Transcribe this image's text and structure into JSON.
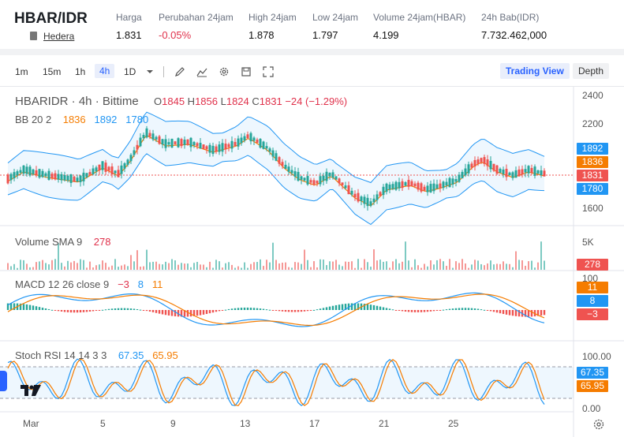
{
  "header": {
    "pair": "HBAR/IDR",
    "coin_name": "Hedera",
    "stats": [
      {
        "label": "Harga",
        "value": "1.831"
      },
      {
        "label": "Perubahan 24jam",
        "value": "-0.05%",
        "negative": true
      },
      {
        "label": "High 24jam",
        "value": "1.878"
      },
      {
        "label": "Low 24jam",
        "value": "1.797"
      },
      {
        "label": "Volume 24jam(HBAR)",
        "value": "4.199"
      },
      {
        "label": "24h Bab(IDR)",
        "value": "7.732.462,000"
      }
    ]
  },
  "toolbar": {
    "timeframes": [
      "1m",
      "15m",
      "1h",
      "4h",
      "1D"
    ],
    "active_timeframe": "4h",
    "views": [
      "Trading View",
      "Depth"
    ],
    "active_view": "Trading View",
    "icons": [
      "chevron-down-icon",
      "pencil-icon",
      "line-chart-icon",
      "gear-icon",
      "save-icon",
      "fullscreen-icon"
    ]
  },
  "legend": {
    "symbol": "HBARIDR · 4h · Bittime",
    "o_label": "O",
    "o": "1845",
    "h_label": "H",
    "h": "1856",
    "l_label": "L",
    "l": "1824",
    "c_label": "C",
    "c": "1831",
    "change": "−24 (−1.29%)"
  },
  "indicators": {
    "bb": {
      "label": "BB 20 2",
      "basis": "1836",
      "upper": "1892",
      "lower": "1780"
    },
    "volume": {
      "label": "Volume SMA 9",
      "value": "278"
    },
    "macd": {
      "label": "MACD 12 26 close 9",
      "hist": "−3",
      "macd": "8",
      "signal": "11"
    },
    "stoch": {
      "label": "Stoch RSI 14 14 3 3",
      "k": "67.35",
      "d": "65.95"
    }
  },
  "axis": {
    "price_ticks": [
      "2400",
      "2200",
      "1600"
    ],
    "volume_ticks": [
      "5K"
    ],
    "macd_ticks": [
      "100"
    ],
    "stoch_ticks": [
      "100.00",
      "0.00"
    ],
    "x_ticks": [
      "Mar",
      "5",
      "9",
      "13",
      "17",
      "21",
      "25"
    ]
  },
  "price_tags": {
    "bb_upper": "1892",
    "bb_basis": "1836",
    "last": "1831",
    "bb_lower": "1780",
    "volume": "278",
    "macd_signal": "11",
    "macd_line": "8",
    "macd_hist": "−3",
    "stoch_k": "67.35",
    "stoch_d": "65.95"
  },
  "colors": {
    "up": "#26a69a",
    "down": "#ef5350",
    "bb_band": "#2196f3",
    "bb_basis": "#f57c00",
    "accent": "#2962ff",
    "negative_text": "#e0314b"
  }
}
